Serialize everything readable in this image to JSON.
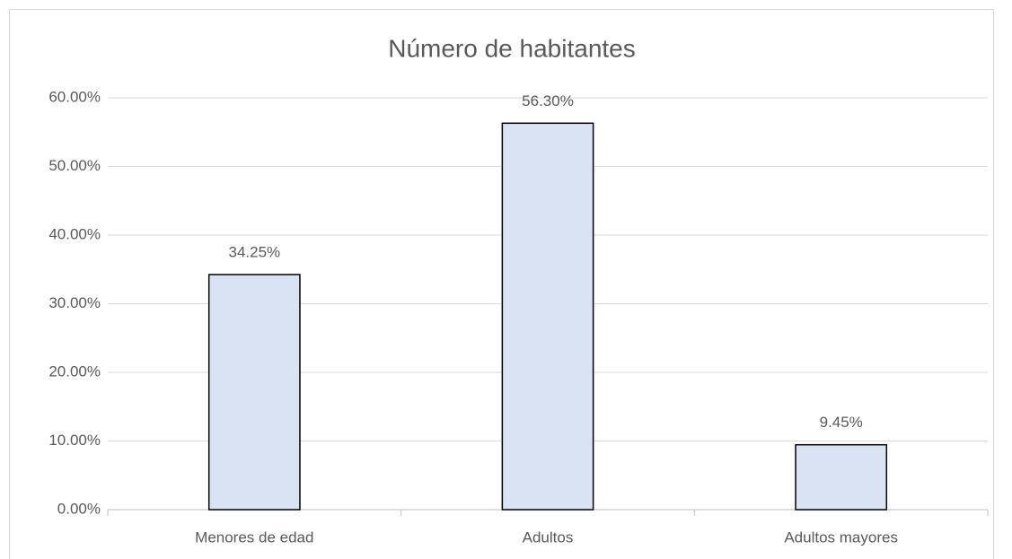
{
  "chart_data": {
    "type": "bar",
    "title": "Número de habitantes",
    "categories": [
      "Menores de edad",
      "Adultos",
      "Adultos mayores"
    ],
    "values": [
      34.25,
      56.3,
      9.45
    ],
    "value_labels": [
      "34.25%",
      "56.30%",
      "9.45%"
    ],
    "color": "#dae3f3",
    "edgecolor": "#000000",
    "ylim": [
      0,
      60
    ],
    "yticks": [
      {
        "value": 0,
        "label": "0.00%"
      },
      {
        "value": 10,
        "label": "10.00%"
      },
      {
        "value": 20,
        "label": "20.00%"
      },
      {
        "value": 30,
        "label": "30.00%"
      },
      {
        "value": 40,
        "label": "40.00%"
      },
      {
        "value": 50,
        "label": "50.00%"
      },
      {
        "value": 60,
        "label": "60.00%"
      }
    ],
    "grid": true
  }
}
